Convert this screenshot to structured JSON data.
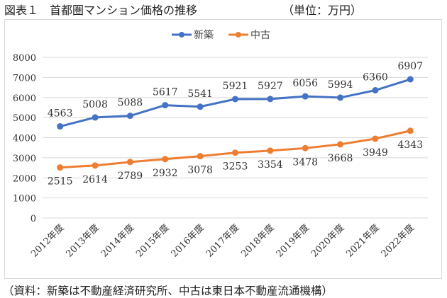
{
  "title": "図表１　首都圏マンション価格の推移",
  "unit": "（単位：万円）",
  "source": "（資料：新築は不動産経済研究所、中古は東日本不動産流通機構）",
  "chart_data": {
    "type": "line",
    "categories": [
      "2012年度",
      "2013年度",
      "2014年度",
      "2015年度",
      "2016年度",
      "2017年度",
      "2018年度",
      "2019年度",
      "2020年度",
      "2021年度",
      "2022年度"
    ],
    "series": [
      {
        "name": "新築",
        "color": "#4472c4",
        "values": [
          4563,
          5008,
          5088,
          5617,
          5541,
          5921,
          5927,
          6056,
          5994,
          6360,
          6907
        ],
        "label_position": "above"
      },
      {
        "name": "中古",
        "color": "#ed7d31",
        "values": [
          2515,
          2614,
          2789,
          2932,
          3078,
          3253,
          3354,
          3478,
          3668,
          3949,
          4343
        ],
        "label_position": "below"
      }
    ],
    "ylim": [
      0,
      8000
    ],
    "yticks": [
      0,
      1000,
      2000,
      3000,
      4000,
      5000,
      6000,
      7000,
      8000
    ],
    "grid": true,
    "legend": "top-center"
  }
}
